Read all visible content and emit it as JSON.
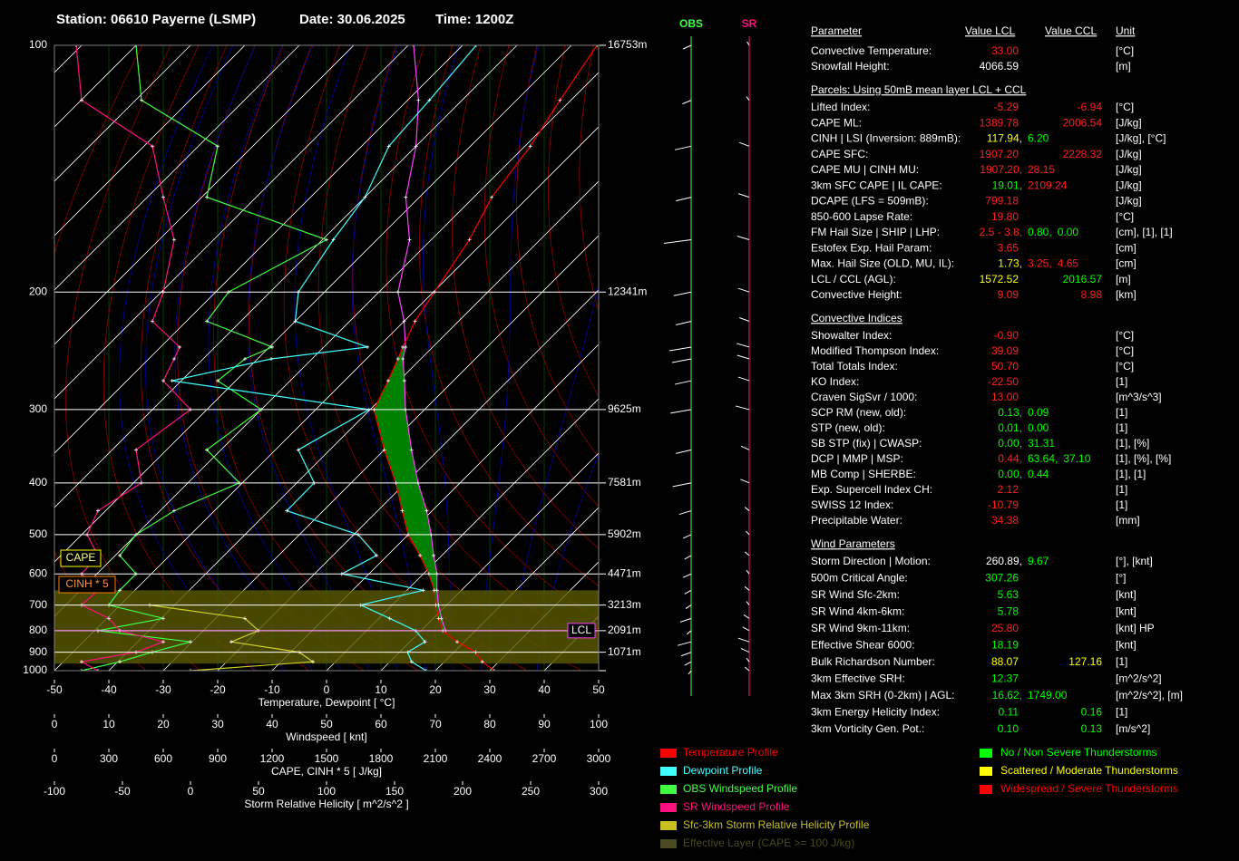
{
  "header": {
    "station": "Station: 06610 Payerne (LSMP)",
    "date": "Date: 30.06.2025",
    "time": "Time: 1200Z"
  },
  "skewt": {
    "type": "skewt",
    "ylim": [
      100,
      1000
    ],
    "yticks": [
      100,
      200,
      300,
      400,
      500,
      600,
      700,
      800,
      900,
      1000
    ],
    "height_labels": [
      "16753m",
      "12341m",
      "9625m",
      "7581m",
      "5902m",
      "4471m",
      "3213m",
      "2091m",
      "1071m"
    ],
    "levels": [
      1000,
      950,
      900,
      850,
      800,
      750,
      700,
      650,
      600,
      550,
      500,
      450,
      400,
      350,
      300,
      270,
      250,
      240,
      220,
      200,
      170,
      150,
      130,
      115,
      100
    ],
    "temperature": {
      "color": "#ff0000",
      "values": [
        30.8,
        27,
        24,
        18.7,
        14,
        11,
        8,
        5,
        1,
        -4,
        -10,
        -15.5,
        -21.8,
        -30,
        -39.3,
        -42,
        -44.2,
        -45.5,
        -48,
        -49.8,
        -53,
        -56.7,
        -59,
        -62,
        -65.3
      ]
    },
    "dewpoint": {
      "color": "#40ffff",
      "values": [
        18.3,
        14,
        11.5,
        12.8,
        9,
        2,
        -5.8,
        3,
        -15,
        -12,
        -19.2,
        -36.7,
        -36.8,
        -45.8,
        -40.2,
        -81.7,
        -67.5,
        -52,
        -70,
        -74.8,
        -78,
        -80,
        -85,
        -86,
        -87.5
      ]
    },
    "parcel": {
      "color": "#ff40ff",
      "values": [
        null,
        null,
        null,
        null,
        14.5,
        11.5,
        8.5,
        5.5,
        2.5,
        -1.5,
        -5.8,
        -11,
        -17.7,
        -25,
        -33.5,
        -39,
        -43.3,
        -45,
        -50,
        -56.5,
        -64,
        -72.5,
        -80,
        -88,
        -99
      ]
    },
    "cape_color": "#008000",
    "obs_wind": {
      "color": "#40ff40",
      "values": [
        5,
        12,
        18,
        25,
        8,
        20,
        10,
        12,
        15,
        12,
        15,
        22,
        34,
        28,
        38,
        30,
        35,
        40,
        28,
        32,
        50,
        28,
        30,
        16,
        15
      ]
    },
    "sr_wind": {
      "color": "#ff1080",
      "values": [
        8,
        5,
        15,
        20,
        12,
        10,
        5,
        8,
        5,
        8,
        6,
        8,
        16,
        15,
        25,
        20,
        22,
        23,
        18,
        20,
        22,
        20,
        18,
        5,
        4
      ]
    },
    "srh": {
      "color": "#d0d020",
      "values": [
        0,
        90,
        80,
        30,
        50,
        40,
        -30,
        null,
        null,
        null,
        null,
        null,
        null,
        null,
        null,
        null,
        null,
        null,
        null,
        null,
        null,
        null,
        null,
        null,
        null
      ]
    },
    "effective_layer": {
      "top": 650,
      "bottom": 960,
      "color": "#5a5a00"
    },
    "lcl": {
      "pressure": 800,
      "label": "LCL"
    },
    "cape_label": "CAPE",
    "cinh_label": "CINH * 5",
    "axes": {
      "temperature": {
        "title": "Temperature, Dewpoint [ °C]",
        "lim": [
          -50,
          50
        ],
        "ticks": [
          -50,
          -40,
          -30,
          -20,
          -10,
          0,
          10,
          20,
          30,
          40,
          50
        ]
      },
      "windspeed": {
        "title": "Windspeed [ knt]",
        "lim": [
          0,
          100
        ],
        "ticks": [
          0,
          10,
          20,
          30,
          40,
          50,
          60,
          70,
          80,
          90,
          100
        ]
      },
      "cape": {
        "title": "CAPE, CINH * 5 [ J/kg]",
        "lim": [
          0,
          3000
        ],
        "ticks": [
          0,
          300,
          600,
          900,
          1200,
          1500,
          1800,
          2100,
          2400,
          2700,
          3000
        ]
      },
      "srh": {
        "title": "Storm Relative Helicity [ m^2/s^2 ]",
        "lim": [
          -100,
          300
        ],
        "ticks": [
          -100,
          -50,
          0,
          50,
          100,
          150,
          200,
          250,
          300
        ]
      }
    }
  },
  "barbs": {
    "obs_label": "OBS",
    "sr_label": "SR"
  },
  "table": {
    "header": [
      "Parameter",
      "Value LCL",
      "Value CCL",
      "Unit"
    ],
    "sections": [
      {
        "rows": [
          {
            "parameter": "Convective Temperature:",
            "lcl": [
              {
                "text": "33.00",
                "color": "#ff2020"
              }
            ],
            "unit": "[°C]"
          },
          {
            "parameter": "Snowfall Height:",
            "lcl": [
              {
                "text": "4066.59",
                "color": "#ffffff"
              }
            ],
            "unit": "[m]"
          }
        ]
      },
      {
        "title": "Parcels: Using 50mB mean layer LCL + CCL",
        "rows": [
          {
            "parameter": "Lifted Index:",
            "lcl": [
              {
                "text": "-5.29",
                "color": "#ff2020"
              }
            ],
            "ccl": [
              {
                "text": "-6.94",
                "color": "#ff2020"
              }
            ],
            "unit": "[°C]"
          },
          {
            "parameter": "CAPE ML:",
            "lcl": [
              {
                "text": "1389.78",
                "color": "#ff2020"
              }
            ],
            "ccl": [
              {
                "text": "2006.54",
                "color": "#ff2020"
              }
            ],
            "unit": "[J/kg]"
          },
          {
            "parameter": "CINH | LSI (Inversion: 889mB):",
            "lcl": [
              {
                "text": "117.94,",
                "color": "#ffff00"
              },
              {
                "text": "6.20",
                "color": "#00ff00"
              }
            ],
            "unit": "[J/kg], [°C]"
          },
          {
            "parameter": "CAPE SFC:",
            "lcl": [
              {
                "text": "1907.20",
                "color": "#ff2020"
              }
            ],
            "ccl": [
              {
                "text": "2228.32",
                "color": "#ff2020"
              }
            ],
            "unit": "[J/kg]"
          },
          {
            "parameter": "CAPE MU | CINH MU:",
            "lcl": [
              {
                "text": "1907.20,",
                "color": "#ff2020"
              },
              {
                "text": "28.15",
                "color": "#ff2020"
              }
            ],
            "unit": "[J/kg]"
          },
          {
            "parameter": "3km SFC CAPE | IL CAPE:",
            "lcl": [
              {
                "text": "19.01,",
                "color": "#00ff00"
              },
              {
                "text": "2109.24",
                "color": "#ff2020"
              }
            ],
            "unit": "[J/kg]"
          },
          {
            "parameter": "DCAPE (LFS = 509mB):",
            "lcl": [
              {
                "text": "799.18",
                "color": "#ff2020"
              }
            ],
            "unit": "[J/kg]"
          },
          {
            "parameter": "850-600 Lapse Rate:",
            "lcl": [
              {
                "text": "19.80",
                "color": "#ff2020"
              }
            ],
            "unit": "[°C]"
          },
          {
            "parameter": "FM Hail Size | SHIP | LHP:",
            "lcl": [
              {
                "text": "2.5 - 3.8,",
                "color": "#ff2020"
              },
              {
                "text": "0.80,",
                "color": "#00ff00"
              },
              {
                "text": "0.00",
                "color": "#00ff00"
              }
            ],
            "unit": "[cm], [1], [1]"
          },
          {
            "parameter": "Estofex Exp. Hail Param:",
            "lcl": [
              {
                "text": "3.65",
                "color": "#ff2020"
              }
            ],
            "unit": "[cm]"
          },
          {
            "parameter": "Max. Hail Size (OLD, MU, IL):",
            "lcl": [
              {
                "text": "1.73,",
                "color": "#ffff00"
              },
              {
                "text": "3.25,",
                "color": "#ff2020"
              },
              {
                "text": "4.65",
                "color": "#ff2020"
              }
            ],
            "unit": "[cm]"
          },
          {
            "parameter": "LCL / CCL (AGL):",
            "lcl": [
              {
                "text": "1572.52",
                "color": "#ffff00"
              }
            ],
            "ccl": [
              {
                "text": "2016.57",
                "color": "#00ff00"
              }
            ],
            "unit": "[m]"
          },
          {
            "parameter": "Convective Height:",
            "lcl": [
              {
                "text": "9.09",
                "color": "#ff2020"
              }
            ],
            "ccl": [
              {
                "text": "8.98",
                "color": "#ff2020"
              }
            ],
            "unit": "[km]"
          }
        ]
      },
      {
        "title": "Convective Indices",
        "rows": [
          {
            "parameter": "Showalter Index:",
            "lcl": [
              {
                "text": "-0.90",
                "color": "#ff2020"
              }
            ],
            "unit": "[°C]"
          },
          {
            "parameter": "Modified Thompson Index:",
            "lcl": [
              {
                "text": "39.09",
                "color": "#ff2020"
              }
            ],
            "unit": "[°C]"
          },
          {
            "parameter": "Total Totals Index:",
            "lcl": [
              {
                "text": "50.70",
                "color": "#ff2020"
              }
            ],
            "unit": "[°C]"
          },
          {
            "parameter": "KO Index:",
            "lcl": [
              {
                "text": "-22.50",
                "color": "#ff2020"
              }
            ],
            "unit": "[1]"
          },
          {
            "parameter": "Craven SigSvr / 1000:",
            "lcl": [
              {
                "text": "13.00",
                "color": "#ff2020"
              }
            ],
            "unit": "[m^3/s^3]"
          },
          {
            "parameter": "SCP RM (new, old):",
            "lcl": [
              {
                "text": "0.13,",
                "color": "#00ff00"
              },
              {
                "text": "0.09",
                "color": "#00ff00"
              }
            ],
            "unit": "[1]"
          },
          {
            "parameter": "STP (new, old):",
            "lcl": [
              {
                "text": "0.01,",
                "color": "#00ff00"
              },
              {
                "text": "0.00",
                "color": "#00ff00"
              }
            ],
            "unit": "[1]"
          },
          {
            "parameter": "SB STP (fix) | CWASP:",
            "lcl": [
              {
                "text": "0.00,",
                "color": "#00ff00"
              },
              {
                "text": "31.31",
                "color": "#00ff00"
              }
            ],
            "unit": "[1], [%]"
          },
          {
            "parameter": "DCP | MMP | MSP:",
            "lcl": [
              {
                "text": "0.44,",
                "color": "#ff2020"
              },
              {
                "text": "63.64,",
                "color": "#00ff00"
              },
              {
                "text": "37.10",
                "color": "#00ff00"
              }
            ],
            "unit": "[1], [%], [%]"
          },
          {
            "parameter": "MB Comp | SHERBE:",
            "lcl": [
              {
                "text": "0.00,",
                "color": "#00ff00"
              },
              {
                "text": "0.44",
                "color": "#00ff00"
              }
            ],
            "unit": "[1], [1]"
          },
          {
            "parameter": "Exp. Supercell Index CH:",
            "lcl": [
              {
                "text": "2.12",
                "color": "#ff2020"
              }
            ],
            "unit": "[1]"
          },
          {
            "parameter": "SWISS 12 Index:",
            "lcl": [
              {
                "text": "-10.79",
                "color": "#ff2020"
              }
            ],
            "unit": "[1]"
          },
          {
            "parameter": "Precipitable Water:",
            "lcl": [
              {
                "text": "34.38",
                "color": "#ff2020"
              }
            ],
            "unit": "[mm]"
          }
        ]
      },
      {
        "title": "Wind Parameters",
        "rows": [
          {
            "parameter": "Storm Direction | Motion:",
            "lcl": [
              {
                "text": "260.89,",
                "color": "#ffffff"
              },
              {
                "text": "9.67",
                "color": "#00ff00"
              }
            ],
            "unit": "[°], [knt]"
          },
          {
            "parameter": "500m Critical Angle:",
            "lcl": [
              {
                "text": "307.26",
                "color": "#00ff00"
              }
            ],
            "unit": "[°]"
          },
          {
            "parameter": "SR Wind Sfc-2km:",
            "lcl": [
              {
                "text": "5.63",
                "color": "#00ff00"
              }
            ],
            "unit": "[knt]"
          },
          {
            "parameter": "SR Wind 4km-6km:",
            "lcl": [
              {
                "text": "5.78",
                "color": "#00ff00"
              }
            ],
            "unit": "[knt]"
          },
          {
            "parameter": "SR Wind 9km-11km:",
            "lcl": [
              {
                "text": "25.80",
                "color": "#ff2020"
              }
            ],
            "unit": "[knt] HP"
          },
          {
            "parameter": "Effective Shear 6000:",
            "lcl": [
              {
                "text": "18.19",
                "color": "#00ff00"
              }
            ],
            "unit": "[knt]"
          },
          {
            "parameter": "Bulk Richardson Number:",
            "lcl": [
              {
                "text": "88.07",
                "color": "#ffff00"
              }
            ],
            "ccl": [
              {
                "text": "127.16",
                "color": "#ffff00"
              }
            ],
            "unit": "[1]"
          },
          {
            "parameter": "3km Effective SRH:",
            "lcl": [
              {
                "text": "12.37",
                "color": "#00ff00"
              }
            ],
            "unit": "[m^2/s^2]"
          },
          {
            "parameter": "Max 3km SRH (0-2km) | AGL:",
            "lcl": [
              {
                "text": "16.62,",
                "color": "#00ff00"
              },
              {
                "text": "1749.00",
                "color": "#00ff00"
              }
            ],
            "unit": "[m^2/s^2], [m]"
          },
          {
            "parameter": "3km Energy Helicity Index:",
            "lcl": [
              {
                "text": "0.11",
                "color": "#00ff00"
              }
            ],
            "ccl": [
              {
                "text": "0.16",
                "color": "#00ff00"
              }
            ],
            "unit": "[1]"
          },
          {
            "parameter": "3km Vorticity Gen. Pot.:",
            "lcl": [
              {
                "text": "0.10",
                "color": "#00ff00"
              }
            ],
            "ccl": [
              {
                "text": "0.13",
                "color": "#00ff00"
              }
            ],
            "unit": "[m/s^2]"
          }
        ]
      }
    ]
  },
  "legend": {
    "profiles": [
      {
        "label": "Temperature Profile",
        "color": "#ff0000"
      },
      {
        "label": "Dewpoint Profile",
        "color": "#40ffff"
      },
      {
        "label": "OBS Windspeed Profile",
        "color": "#40ff40"
      },
      {
        "label": "SR Windspeed Profile",
        "color": "#ff1080"
      },
      {
        "label": "Sfc-3km Storm Relative Helicity Profile",
        "color": "#c8c020"
      },
      {
        "label": "Effective Layer (CAPE >= 100 J/kg)",
        "color": "#4a4a20"
      }
    ],
    "severity": [
      {
        "label": "No / Non Severe Thunderstorms",
        "color": "#00ff00"
      },
      {
        "label": "Scattered / Moderate Thunderstorms",
        "color": "#ffff00"
      },
      {
        "label": "Widespread / Severe Thunderstorms",
        "color": "#ff0000"
      }
    ]
  }
}
